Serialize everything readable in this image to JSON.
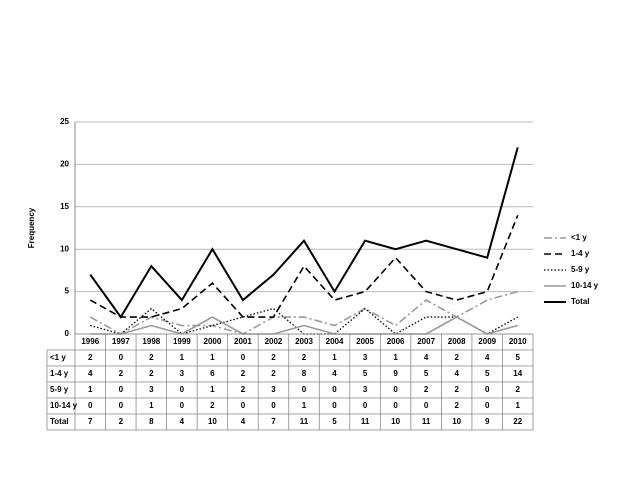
{
  "chart_data": {
    "type": "line",
    "y_label": "Frequency",
    "categories": [
      "1996",
      "1997",
      "1998",
      "1999",
      "2000",
      "2001",
      "2002",
      "2003",
      "2004",
      "2005",
      "2006",
      "2007",
      "2008",
      "2009",
      "2010"
    ],
    "series": [
      {
        "name": "<1 y",
        "color": "#999999",
        "style": "dash-dot",
        "values": [
          2,
          0,
          2,
          1,
          1,
          0,
          2,
          2,
          1,
          3,
          1,
          4,
          2,
          4,
          5
        ]
      },
      {
        "name": "1-4 y",
        "color": "#000000",
        "style": "dashed",
        "values": [
          4,
          2,
          2,
          3,
          6,
          2,
          2,
          8,
          4,
          5,
          9,
          5,
          4,
          5,
          14
        ]
      },
      {
        "name": "5-9 y",
        "color": "#000000",
        "style": "dotted",
        "values": [
          1,
          0,
          3,
          0,
          1,
          2,
          3,
          0,
          0,
          3,
          0,
          2,
          2,
          0,
          2
        ]
      },
      {
        "name": "10-14 y",
        "color": "#999999",
        "style": "solid",
        "values": [
          0,
          0,
          1,
          0,
          2,
          0,
          0,
          1,
          0,
          0,
          0,
          0,
          2,
          0,
          1
        ]
      },
      {
        "name": "Total",
        "color": "#000000",
        "style": "solid-thick",
        "values": [
          7,
          2,
          8,
          4,
          10,
          4,
          7,
          11,
          5,
          11,
          10,
          11,
          10,
          9,
          22
        ]
      }
    ],
    "ylim": [
      0,
      25
    ],
    "yticks": [
      0,
      5,
      10,
      15,
      20,
      25
    ],
    "grid": true,
    "legend": "right",
    "data_table": true
  }
}
